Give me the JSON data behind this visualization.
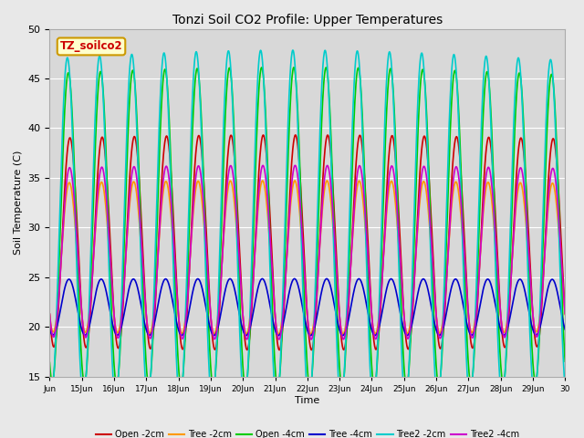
{
  "title": "Tonzi Soil CO2 Profile: Upper Temperatures",
  "xlabel": "Time",
  "ylabel": "Soil Temperature (C)",
  "ylim": [
    15,
    50
  ],
  "xlim_days": [
    14,
    30
  ],
  "annotation": "TZ_soilco2",
  "series": [
    {
      "label": "Open -2cm",
      "color": "#cc0000",
      "lw": 1.2
    },
    {
      "label": "Tree -2cm",
      "color": "#ff9900",
      "lw": 1.2
    },
    {
      "label": "Open -4cm",
      "color": "#00cc00",
      "lw": 1.2
    },
    {
      "label": "Tree -4cm",
      "color": "#0000cc",
      "lw": 1.2
    },
    {
      "label": "Tree2 -2cm",
      "color": "#00cccc",
      "lw": 1.2
    },
    {
      "label": "Tree2 -4cm",
      "color": "#cc00cc",
      "lw": 1.2
    }
  ],
  "background_color": "#e8e8e8",
  "plot_bg_color": "#d8d8d8",
  "tick_labels": [
    "Jun",
    "15Jun",
    "16Jun",
    "17Jun",
    "18Jun",
    "19Jun",
    "20Jun",
    "21Jun",
    "22Jun",
    "23Jun",
    "24Jun",
    "25Jun",
    "26Jun",
    "27Jun",
    "28Jun",
    "29Jun",
    "30"
  ],
  "tick_positions": [
    14,
    15,
    16,
    17,
    18,
    19,
    20,
    21,
    22,
    23,
    24,
    25,
    26,
    27,
    28,
    29,
    30
  ]
}
